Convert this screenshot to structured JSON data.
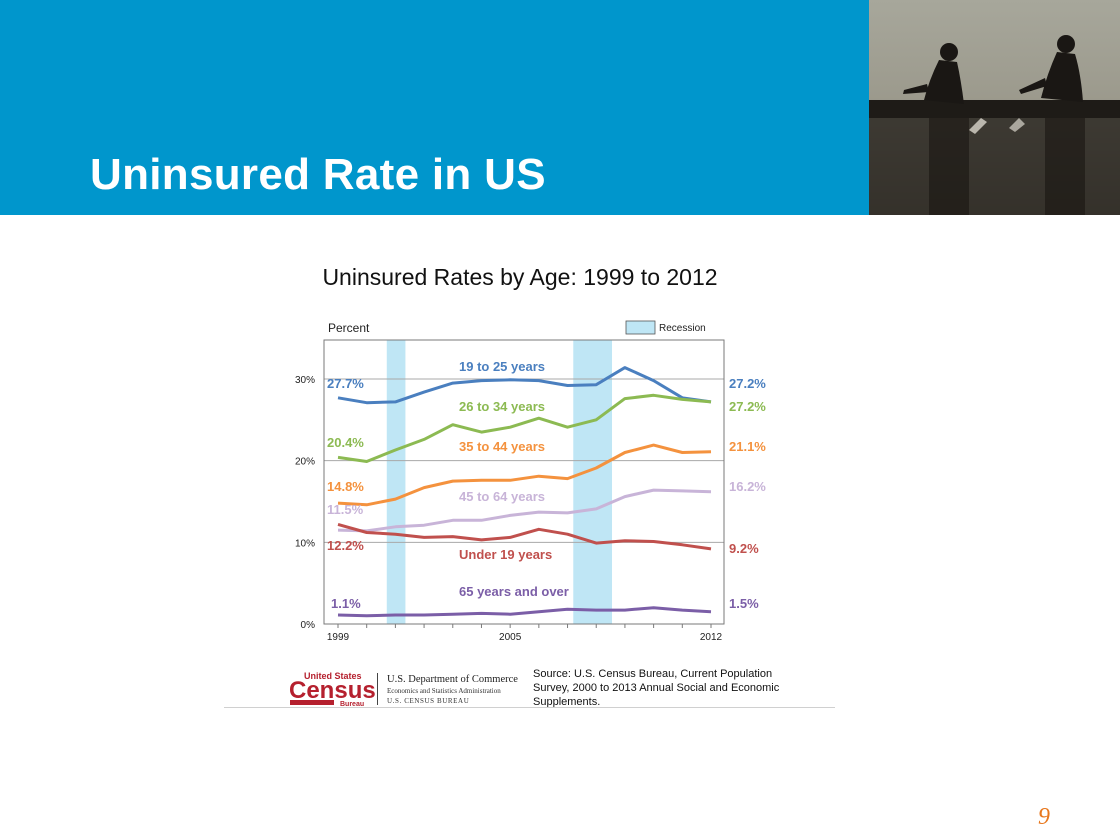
{
  "slide": {
    "title": "Uninsured Rate in US",
    "page_number": "9",
    "accent_color": "#0096cc",
    "page_number_color": "#e8781e"
  },
  "photo": {
    "icon": "rowers-photo"
  },
  "footer": {
    "logo_text": {
      "top": "United States",
      "main": "Census",
      "sub": "Bureau"
    },
    "department": "U.S. Department of Commerce",
    "administration": "Economics and Statistics Administration",
    "bureau": "U.S. CENSUS BUREAU",
    "source": "Source: U.S. Census Bureau, Current Population Survey, 2000 to 2013 Annual Social and Economic Supplements."
  },
  "chart_data": {
    "type": "line",
    "title": "Uninsured Rates by Age: 1999 to 2012",
    "ylabel": "Percent",
    "ylim": [
      0,
      30
    ],
    "yticks": [
      0,
      10,
      20,
      30
    ],
    "ytick_labels": [
      "0%",
      "10%",
      "20%",
      "30%"
    ],
    "xlim": [
      1999,
      2012
    ],
    "xtick_labels": [
      "1999",
      "2005",
      "2012"
    ],
    "x": [
      1999,
      2000,
      2001,
      2002,
      2003,
      2004,
      2005,
      2006,
      2007,
      2008,
      2009,
      2010,
      2011,
      2012
    ],
    "legend": {
      "label": "Recession",
      "color": "#bfe6f5",
      "position": "top-right"
    },
    "recessions": [
      [
        2000.7,
        2001.35
      ],
      [
        2007.2,
        2008.55
      ]
    ],
    "grid": "horizontal",
    "series": [
      {
        "name": "19 to 25 years",
        "color": "#4a7fbf",
        "start_label": "27.7%",
        "end_label": "27.2%",
        "values": [
          27.7,
          27.1,
          27.2,
          28.4,
          29.5,
          29.8,
          29.9,
          29.8,
          29.2,
          29.3,
          31.4,
          29.8,
          27.7,
          27.2
        ]
      },
      {
        "name": "26 to 34 years",
        "color": "#8cba52",
        "start_label": "20.4%",
        "end_label": "27.2%",
        "values": [
          20.4,
          19.9,
          21.3,
          22.6,
          24.4,
          23.5,
          24.1,
          25.2,
          24.1,
          25.0,
          27.6,
          28.0,
          27.5,
          27.2
        ]
      },
      {
        "name": "35 to 44 years",
        "color": "#f4923e",
        "start_label": "14.8%",
        "end_label": "21.1%",
        "values": [
          14.8,
          14.6,
          15.3,
          16.7,
          17.5,
          17.6,
          17.6,
          18.1,
          17.8,
          19.1,
          21.0,
          21.9,
          21.0,
          21.1
        ]
      },
      {
        "name": "45 to 64 years",
        "color": "#c8b4d8",
        "start_label": "11.5%",
        "end_label": "16.2%",
        "values": [
          11.5,
          11.4,
          11.9,
          12.1,
          12.7,
          12.7,
          13.3,
          13.7,
          13.6,
          14.1,
          15.6,
          16.4,
          16.3,
          16.2
        ]
      },
      {
        "name": "Under 19 years",
        "color": "#c0504d",
        "start_label": "12.2%",
        "end_label": "9.2%",
        "values": [
          12.2,
          11.2,
          11.0,
          10.6,
          10.7,
          10.3,
          10.6,
          11.6,
          11.0,
          9.9,
          10.2,
          10.1,
          9.7,
          9.2
        ]
      },
      {
        "name": "65 years and over",
        "color": "#7b5ea7",
        "start_label": "1.1%",
        "end_label": "1.5%",
        "values": [
          1.1,
          1.0,
          1.1,
          1.1,
          1.2,
          1.3,
          1.2,
          1.5,
          1.8,
          1.7,
          1.7,
          2.0,
          1.7,
          1.5
        ]
      }
    ]
  }
}
